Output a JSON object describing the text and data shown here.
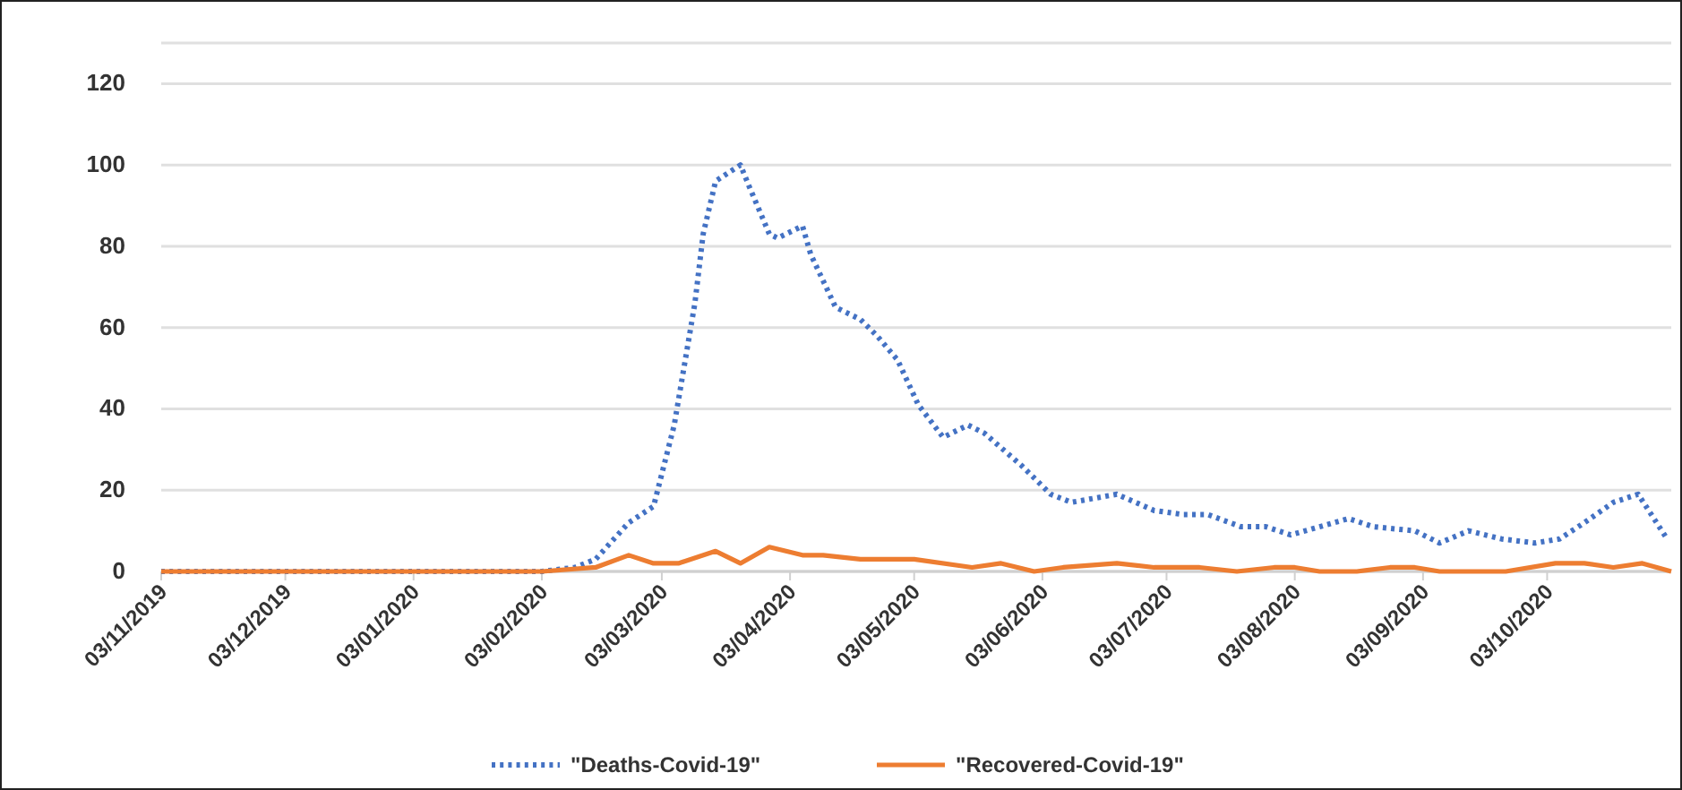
{
  "chart_data": {
    "type": "line",
    "x": [
      "2019-11-03",
      "2020-02-03",
      "2020-02-11",
      "2020-02-16",
      "2020-02-24",
      "2020-03-01",
      "2020-03-06",
      "2020-03-11",
      "2020-03-13",
      "2020-03-16",
      "2020-03-19",
      "2020-03-22",
      "2020-03-24",
      "2020-03-29",
      "2020-03-31",
      "2020-04-06",
      "2020-04-08",
      "2020-04-14",
      "2020-04-20",
      "2020-04-24",
      "2020-04-29",
      "2020-05-04",
      "2020-05-10",
      "2020-05-16",
      "2020-05-20",
      "2020-05-29",
      "2020-06-05",
      "2020-06-10",
      "2020-06-21",
      "2020-06-30",
      "2020-07-07",
      "2020-07-13",
      "2020-07-21",
      "2020-07-27",
      "2020-08-02",
      "2020-08-09",
      "2020-08-16",
      "2020-08-22",
      "2020-09-01",
      "2020-09-07",
      "2020-09-14",
      "2020-09-22",
      "2020-09-30",
      "2020-10-06",
      "2020-10-12",
      "2020-10-19",
      "2020-10-25",
      "2020-11-01"
    ],
    "series": [
      {
        "name": "\"Deaths-Covid-19\"",
        "color": "#4472c4",
        "line_style": "dotted",
        "values": [
          0,
          0,
          1,
          3,
          12,
          16,
          36,
          66,
          83,
          96,
          98,
          100,
          95,
          83,
          82,
          85,
          78,
          65,
          62,
          58,
          52,
          41,
          33,
          36,
          34,
          26,
          19,
          17,
          19,
          15,
          14,
          14,
          11,
          11,
          9,
          11,
          13,
          11,
          10,
          7,
          10,
          8,
          7,
          8,
          12,
          17,
          19,
          8
        ]
      },
      {
        "name": "\"Recovered-Covid-19\"",
        "color": "#ed7d31",
        "line_style": "solid",
        "x": [
          "2019-11-03",
          "2020-02-03",
          "2020-02-16",
          "2020-02-24",
          "2020-03-01",
          "2020-03-07",
          "2020-03-16",
          "2020-03-22",
          "2020-03-29",
          "2020-04-06",
          "2020-04-11",
          "2020-04-20",
          "2020-05-03",
          "2020-05-17",
          "2020-05-24",
          "2020-06-01",
          "2020-06-08",
          "2020-06-21",
          "2020-06-30",
          "2020-07-11",
          "2020-07-20",
          "2020-07-29",
          "2020-08-03",
          "2020-08-09",
          "2020-08-18",
          "2020-08-26",
          "2020-09-01",
          "2020-09-07",
          "2020-09-23",
          "2020-10-05",
          "2020-10-12",
          "2020-10-19",
          "2020-10-26",
          "2020-11-02"
        ],
        "values": [
          0,
          0,
          1,
          4,
          2,
          2,
          5,
          2,
          6,
          4,
          4,
          3,
          3,
          1,
          2,
          0,
          1,
          2,
          1,
          1,
          0,
          1,
          1,
          0,
          0,
          1,
          1,
          0,
          0,
          2,
          2,
          1,
          2,
          0
        ]
      }
    ],
    "xlim": [
      "2019-11-03",
      "2020-11-02"
    ],
    "xticks": [
      {
        "value": "2019-11-03",
        "label": "03/11/2019"
      },
      {
        "value": "2019-12-03",
        "label": "03/12/2019"
      },
      {
        "value": "2020-01-03",
        "label": "03/01/2020"
      },
      {
        "value": "2020-02-03",
        "label": "03/02/2020"
      },
      {
        "value": "2020-03-03",
        "label": "03/03/2020"
      },
      {
        "value": "2020-04-03",
        "label": "03/04/2020"
      },
      {
        "value": "2020-05-03",
        "label": "03/05/2020"
      },
      {
        "value": "2020-06-03",
        "label": "03/06/2020"
      },
      {
        "value": "2020-07-03",
        "label": "03/07/2020"
      },
      {
        "value": "2020-08-03",
        "label": "03/08/2020"
      },
      {
        "value": "2020-09-03",
        "label": "03/09/2020"
      },
      {
        "value": "2020-10-03",
        "label": "03/10/2020"
      }
    ],
    "ylim": [
      0,
      130
    ],
    "yticks": [
      0,
      20,
      40,
      60,
      80,
      100,
      120
    ],
    "grid": "y",
    "legend": "bottom",
    "marker": "none"
  }
}
